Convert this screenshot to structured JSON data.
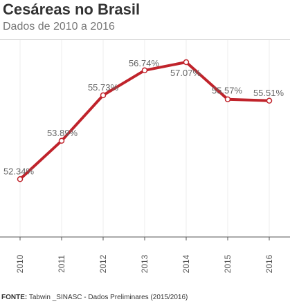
{
  "title": "Cesáreas no Brasil",
  "subtitle": "Dados de 2010 a 2016",
  "source": {
    "label": "FONTE:",
    "text": "Tabwin _SINASC - Dados Preliminares (2015/2016)"
  },
  "colors": {
    "line": "#c0232b",
    "marker_fill": "#ffffff",
    "gridline": "#eeeeee",
    "axis": "#555555",
    "label_text": "#666666"
  },
  "chart_data": {
    "type": "line",
    "title": "Cesáreas no Brasil",
    "subtitle": "Dados de 2010 a 2016",
    "categories": [
      "2010",
      "2011",
      "2012",
      "2013",
      "2014",
      "2015",
      "2016"
    ],
    "values": [
      52.34,
      53.89,
      55.73,
      56.74,
      57.07,
      55.57,
      55.51
    ],
    "data_labels": [
      "52.34%",
      "53.89%",
      "55.73%",
      "56.74%",
      "57.07%",
      "55.57%",
      "55.51%"
    ],
    "xlabel": "",
    "ylabel": "",
    "ylim": [
      50,
      57.6
    ],
    "grid": "vertical",
    "legend": "none"
  }
}
